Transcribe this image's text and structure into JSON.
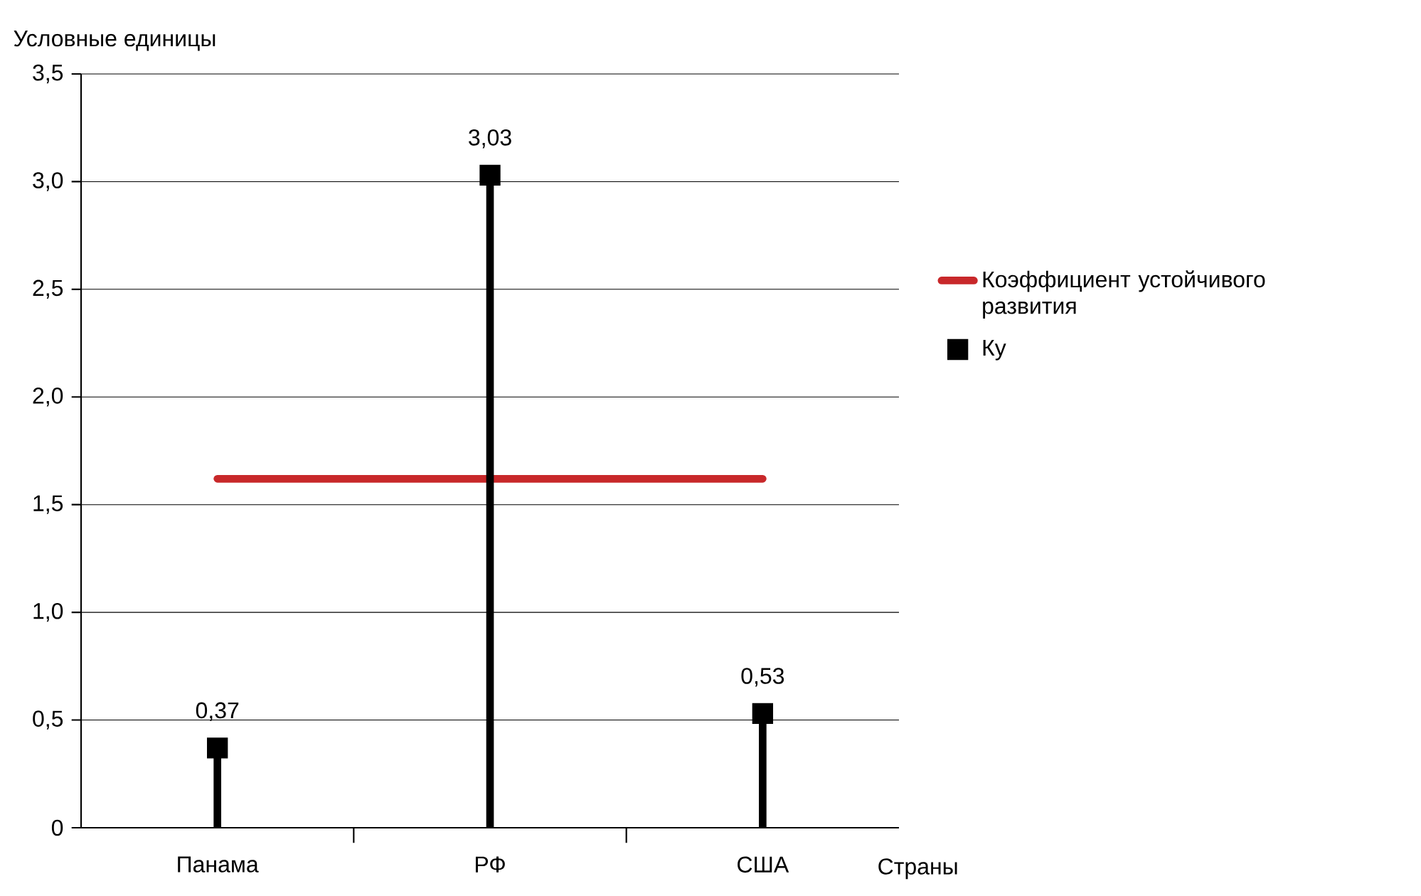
{
  "chart_data": {
    "type": "lollipop",
    "xlabel": "Страны",
    "ylabel": "Условные единицы",
    "categories": [
      "Панама",
      "РФ",
      "США"
    ],
    "series": [
      {
        "name": "Коэффициент устойчивого развития",
        "type": "line",
        "color": "#c8282a",
        "marker": "none",
        "values": [
          1.62,
          1.62,
          1.62
        ]
      },
      {
        "name": "Ку",
        "color": "#000000",
        "marker": "square",
        "values": [
          0.37,
          3.03,
          0.53
        ],
        "value_labels": [
          "0,37",
          "3,03",
          "0,53"
        ]
      }
    ],
    "ylim": [
      0,
      3.5
    ],
    "yticks": [
      0,
      {
        "value": 0.5,
        "label": "0,5"
      },
      {
        "value": 1.0,
        "label": "1,0"
      },
      {
        "value": 1.5,
        "label": "1,5"
      },
      {
        "value": 2.0,
        "label": "2,0"
      },
      {
        "value": 2.5,
        "label": "2,5"
      },
      {
        "value": 3.0,
        "label": "3,0"
      },
      {
        "value": 3.5,
        "label": "3,5"
      }
    ],
    "grid": "y",
    "legend": "right"
  }
}
